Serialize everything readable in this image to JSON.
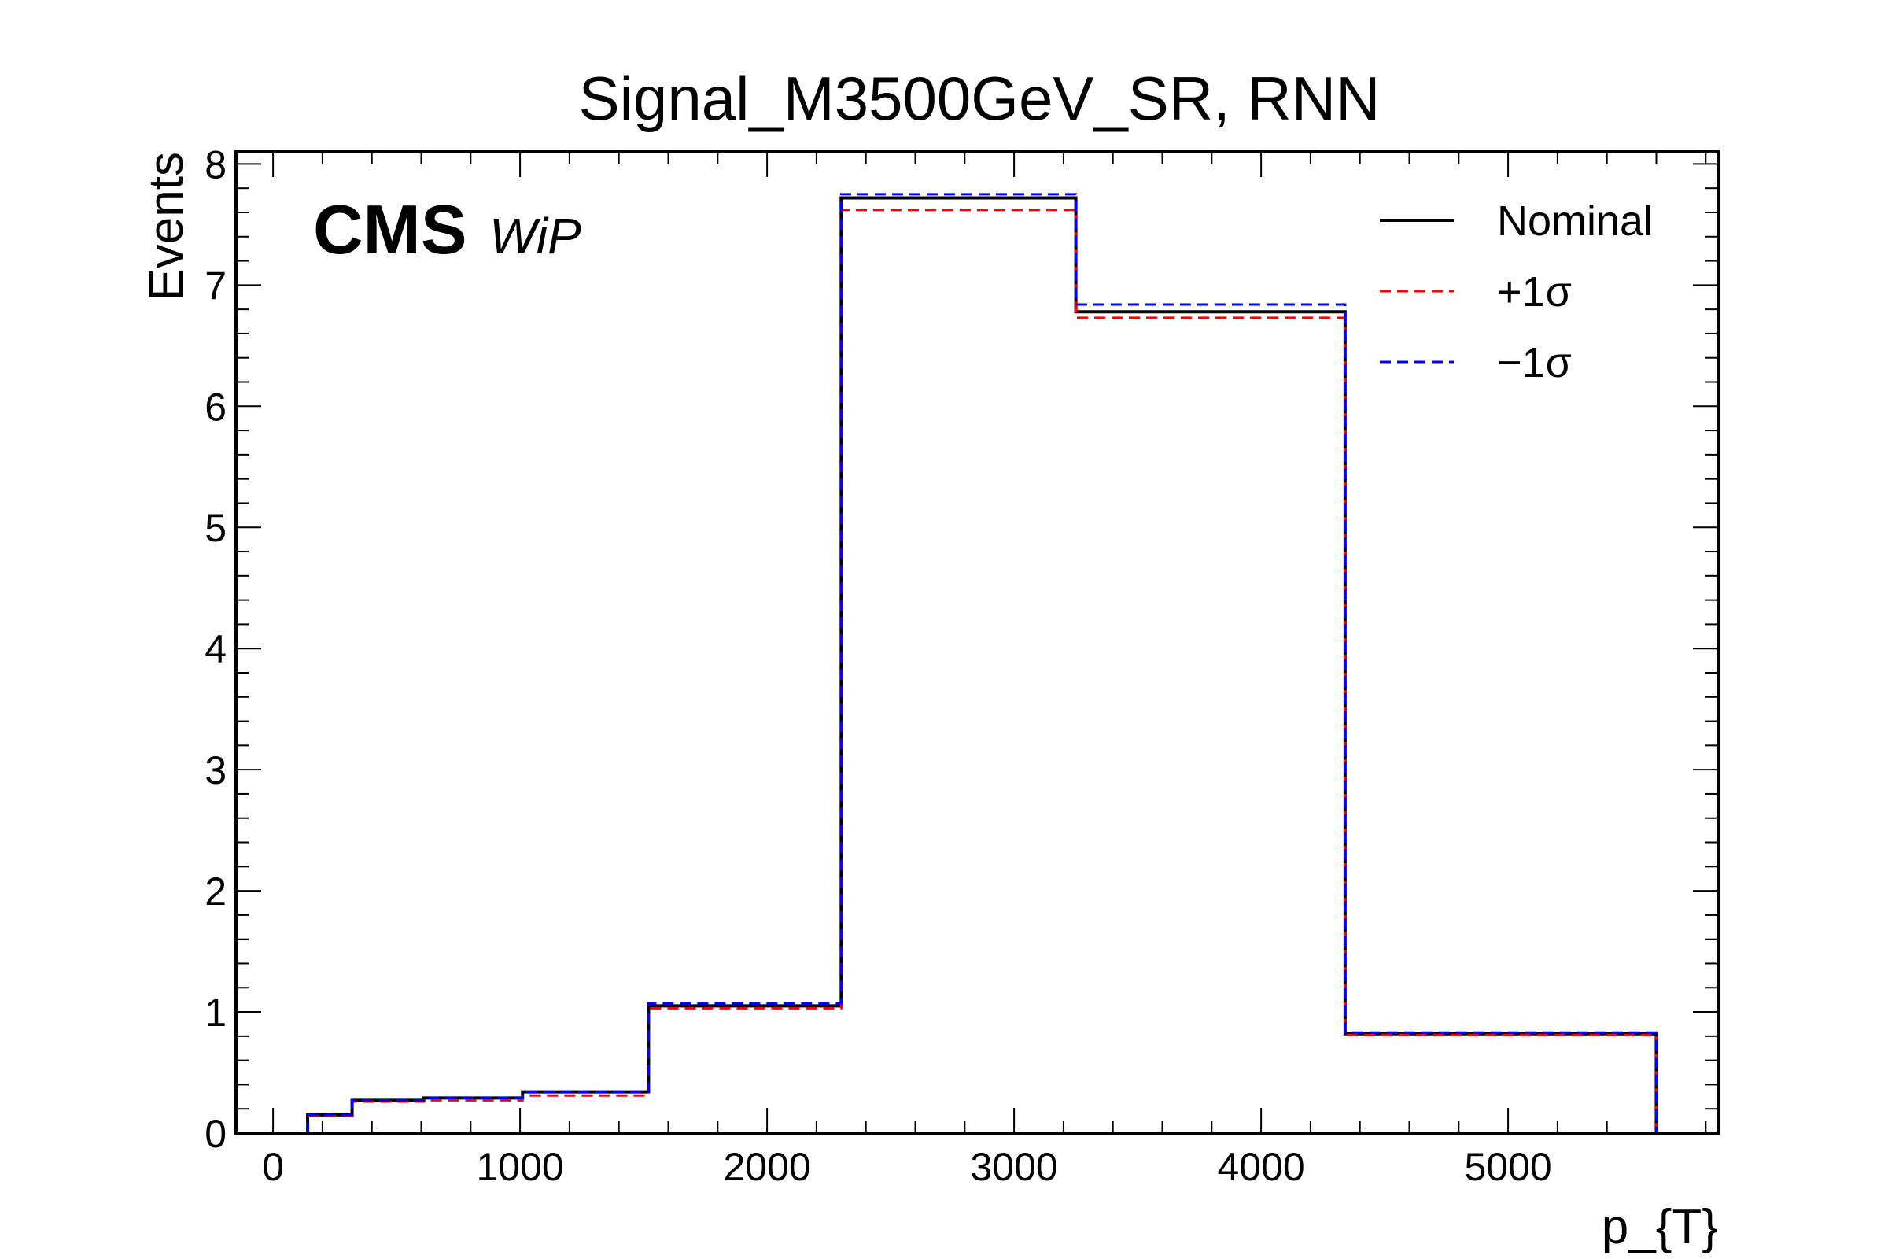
{
  "chart_data": {
    "type": "histogram-step",
    "title": "Signal_M3500GeV_SR, RNN",
    "xlabel": "p_{T}",
    "ylabel": "Events",
    "xlim": [
      -150,
      5850
    ],
    "ylim": [
      0,
      8.1
    ],
    "xticks": [
      0,
      1000,
      2000,
      3000,
      4000,
      5000
    ],
    "yticks": [
      0,
      1,
      2,
      3,
      4,
      5,
      6,
      7,
      8
    ],
    "bin_edges": [
      140,
      320,
      610,
      1010,
      1520,
      2300,
      3250,
      4340,
      5600
    ],
    "legend_position": "top-right",
    "series": [
      {
        "name": "Nominal",
        "color": "#000000",
        "style": "solid",
        "values": [
          0.15,
          0.27,
          0.29,
          0.34,
          1.05,
          7.72,
          6.78,
          0.82
        ]
      },
      {
        "name": "+1σ",
        "color": "#ff0000",
        "style": "dashed",
        "values": [
          0.14,
          0.26,
          0.27,
          0.31,
          1.03,
          7.62,
          6.73,
          0.81
        ]
      },
      {
        "name": "−1σ",
        "color": "#0000ff",
        "style": "dashed",
        "values": [
          0.15,
          0.27,
          0.29,
          0.34,
          1.07,
          7.75,
          6.84,
          0.83
        ]
      }
    ],
    "annotation": {
      "experiment": "CMS",
      "status": "WiP"
    }
  }
}
